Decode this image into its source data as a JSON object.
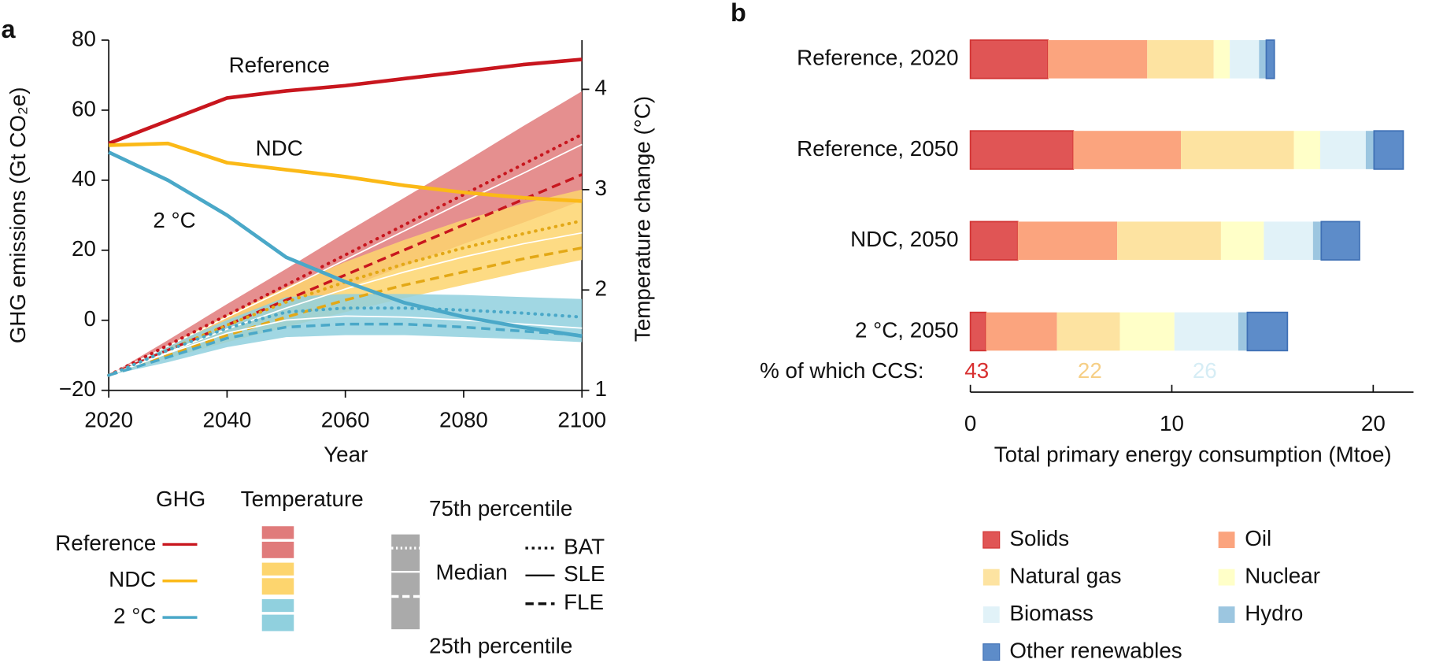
{
  "chart_data": [
    {
      "type": "line",
      "title": "a",
      "xlabel": "Year",
      "ylabel": "GHG emissions (Gt CO₂e)",
      "y2label": "Temperature change (°C)",
      "x": [
        2020,
        2030,
        2040,
        2050,
        2060,
        2070,
        2080,
        2090,
        2100
      ],
      "xlim": [
        2020,
        2100
      ],
      "xticks": [
        2020,
        2040,
        2060,
        2080,
        2100
      ],
      "ylim": [
        -20,
        80
      ],
      "yticks": [
        {
          "value": -20,
          "label": "−20"
        },
        0,
        20,
        40,
        60,
        80
      ],
      "y2lim": [
        1,
        4.49
      ],
      "y2ticks": [
        1,
        2,
        3,
        4
      ],
      "series": [
        {
          "name": "Reference",
          "color": "#c8161e",
          "values": [
            50.5,
            57,
            63.5,
            65.5,
            67,
            69,
            71,
            73,
            74.5
          ]
        },
        {
          "name": "NDC",
          "color": "#fbb917",
          "values": [
            50,
            50.5,
            45,
            43,
            41,
            38.5,
            36.5,
            35,
            34
          ]
        },
        {
          "name": "2 °C",
          "color": "#4aa8c8",
          "values": [
            48,
            40,
            30,
            18,
            11,
            5,
            1,
            -2,
            -4.5
          ]
        }
      ],
      "temperature": [
        {
          "axis": "y2",
          "color": "#e07b7b",
          "line_color": "#c8161e",
          "p75": [
            1.15,
            1.5,
            1.86,
            2.21,
            2.57,
            2.92,
            3.27,
            3.63,
            3.98
          ],
          "p25": [
            1.15,
            1.37,
            1.59,
            1.8,
            2.02,
            2.24,
            2.46,
            2.67,
            2.89
          ],
          "bat": [
            1.15,
            1.45,
            1.75,
            2.05,
            2.35,
            2.65,
            2.95,
            3.25,
            3.55
          ],
          "sle": [
            1.15,
            1.44,
            1.73,
            2.01,
            2.3,
            2.59,
            2.88,
            3.16,
            3.45
          ],
          "fle": [
            1.15,
            1.4,
            1.65,
            1.9,
            2.15,
            2.4,
            2.65,
            2.9,
            3.15
          ]
        },
        {
          "axis": "y2",
          "color": "#fdd56e",
          "line_color": "#e3a816",
          "p75": [
            1.15,
            1.45,
            1.75,
            2.03,
            2.28,
            2.5,
            2.7,
            2.86,
            3.0
          ],
          "p25": [
            1.15,
            1.32,
            1.48,
            1.63,
            1.78,
            1.92,
            2.05,
            2.18,
            2.3
          ],
          "bat": [
            1.15,
            1.4,
            1.65,
            1.88,
            2.08,
            2.26,
            2.42,
            2.56,
            2.69
          ],
          "sle": [
            1.15,
            1.38,
            1.61,
            1.82,
            2.01,
            2.18,
            2.33,
            2.46,
            2.57
          ],
          "fle": [
            1.15,
            1.35,
            1.55,
            1.73,
            1.9,
            2.05,
            2.18,
            2.31,
            2.42
          ]
        },
        {
          "axis": "y2",
          "color": "#90d0de",
          "line_color": "#4aa8c8",
          "p75": [
            1.15,
            1.45,
            1.7,
            1.93,
            1.96,
            1.96,
            1.95,
            1.93,
            1.91
          ],
          "p25": [
            1.15,
            1.28,
            1.43,
            1.53,
            1.55,
            1.55,
            1.53,
            1.51,
            1.48
          ],
          "bat": [
            1.15,
            1.4,
            1.62,
            1.78,
            1.82,
            1.82,
            1.8,
            1.77,
            1.73
          ],
          "sle": [
            1.15,
            1.37,
            1.57,
            1.7,
            1.74,
            1.73,
            1.7,
            1.66,
            1.62
          ],
          "fle": [
            1.15,
            1.33,
            1.52,
            1.63,
            1.66,
            1.66,
            1.63,
            1.59,
            1.55
          ]
        }
      ],
      "legend": {
        "ghg": "GHG",
        "temperature": "Temperature",
        "p75": "75th percentile",
        "p25": "25th percentile",
        "median": "Median",
        "bat": "BAT",
        "sle": "SLE",
        "fle": "FLE"
      }
    },
    {
      "type": "bar",
      "orientation": "horizontal",
      "stacked": true,
      "title": "b",
      "xlabel": "Total primary energy consumption (Mtoe)",
      "categories": [
        "Reference, 2020",
        "Reference, 2050",
        "NDC, 2050",
        "2 °C, 2050"
      ],
      "xlim": [
        0,
        22
      ],
      "xticks": [
        0,
        10,
        20
      ],
      "series": [
        {
          "name": "Solids",
          "color": "#e05555",
          "values": [
            3.85,
            5.11,
            2.35,
            0.77
          ]
        },
        {
          "name": "Oil",
          "color": "#fba47e",
          "values": [
            4.93,
            5.34,
            4.94,
            3.53
          ]
        },
        {
          "name": "Natural gas",
          "color": "#fde3a1",
          "values": [
            3.3,
            5.61,
            5.15,
            3.12
          ]
        },
        {
          "name": "Nuclear",
          "color": "#ffffc8",
          "values": [
            0.8,
            1.31,
            2.13,
            2.71
          ]
        },
        {
          "name": "Biomass",
          "color": "#e1f2f8",
          "values": [
            1.45,
            2.26,
            2.44,
            3.17
          ]
        },
        {
          "name": "Hydro",
          "color": "#9cc6e0",
          "values": [
            0.36,
            0.41,
            0.41,
            0.45
          ]
        },
        {
          "name": "Other renewables",
          "color": "#5d8cc9",
          "values": [
            0.4,
            1.45,
            1.9,
            1.99
          ]
        }
      ],
      "ccs": {
        "label": "% of which CCS:",
        "values": [
          43,
          22,
          26
        ]
      }
    }
  ]
}
